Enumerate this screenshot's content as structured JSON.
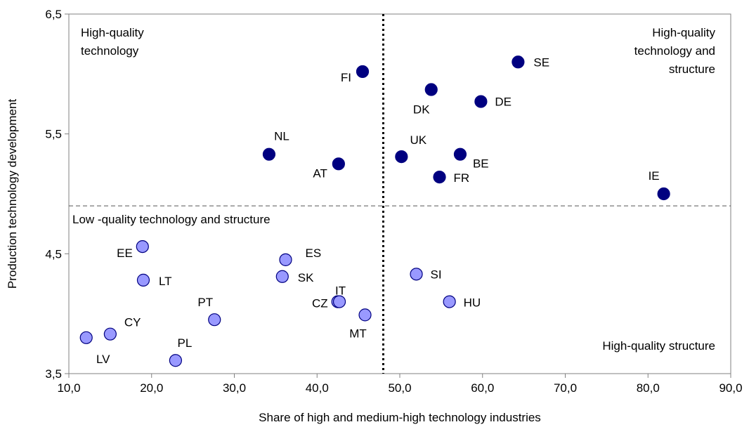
{
  "chart_data": {
    "type": "scatter",
    "title": "",
    "xlabel": "Share of high and medium-high technology industries",
    "ylabel": "Production technology development",
    "xlim": [
      10,
      90
    ],
    "ylim": [
      3.5,
      6.5
    ],
    "x_ticks": [
      10,
      20,
      30,
      40,
      50,
      60,
      70,
      80,
      90
    ],
    "y_ticks": [
      3.5,
      4.5,
      5.5,
      6.5
    ],
    "x_tick_labels": [
      "10,0",
      "20,0",
      "30,0",
      "40,0",
      "50,0",
      "60,0",
      "70,0",
      "80,0",
      "90,0"
    ],
    "y_tick_labels": [
      "3,5",
      "4,5",
      "5,5",
      "6,5"
    ],
    "grid": false,
    "reference_lines": [
      {
        "orientation": "vertical",
        "value": 48,
        "style": "dotted"
      },
      {
        "orientation": "horizontal",
        "value": 4.9,
        "style": "dashed"
      }
    ],
    "region_labels": [
      {
        "lines": [
          "High-quality",
          "technology"
        ]
      },
      {
        "lines": [
          "High-quality",
          "technology and",
          "structure"
        ]
      },
      {
        "lines": [
          "Low -quality technology and structure"
        ]
      },
      {
        "lines": [
          "High-quality structure"
        ]
      }
    ],
    "colors": {
      "high_group": "#000080",
      "low_group": "#9999ff"
    },
    "series": [
      {
        "group": "high",
        "points": [
          {
            "label": "FI",
            "x": 45.5,
            "y": 6.02
          },
          {
            "label": "SE",
            "x": 64.3,
            "y": 6.1
          },
          {
            "label": "DK",
            "x": 53.8,
            "y": 5.87
          },
          {
            "label": "DE",
            "x": 59.8,
            "y": 5.77
          },
          {
            "label": "NL",
            "x": 34.2,
            "y": 5.33
          },
          {
            "label": "AT",
            "x": 42.6,
            "y": 5.25
          },
          {
            "label": "UK",
            "x": 50.2,
            "y": 5.31
          },
          {
            "label": "BE",
            "x": 57.3,
            "y": 5.33
          },
          {
            "label": "FR",
            "x": 54.8,
            "y": 5.14
          },
          {
            "label": "IE",
            "x": 81.9,
            "y": 5.0
          }
        ]
      },
      {
        "group": "low",
        "points": [
          {
            "label": "EE",
            "x": 18.9,
            "y": 4.56
          },
          {
            "label": "LT",
            "x": 19.0,
            "y": 4.28
          },
          {
            "label": "ES",
            "x": 36.2,
            "y": 4.45
          },
          {
            "label": "SK",
            "x": 35.8,
            "y": 4.31
          },
          {
            "label": "PT",
            "x": 27.6,
            "y": 3.95
          },
          {
            "label": "CY",
            "x": 15.0,
            "y": 3.83
          },
          {
            "label": "LV",
            "x": 12.1,
            "y": 3.8
          },
          {
            "label": "PL",
            "x": 22.9,
            "y": 3.61
          },
          {
            "label": "CZ",
            "x": 42.5,
            "y": 4.1
          },
          {
            "label": "IT",
            "x": 42.7,
            "y": 4.1
          },
          {
            "label": "MT",
            "x": 45.8,
            "y": 3.99
          },
          {
            "label": "SI",
            "x": 52.0,
            "y": 4.33
          },
          {
            "label": "HU",
            "x": 56.0,
            "y": 4.1
          }
        ]
      }
    ]
  }
}
